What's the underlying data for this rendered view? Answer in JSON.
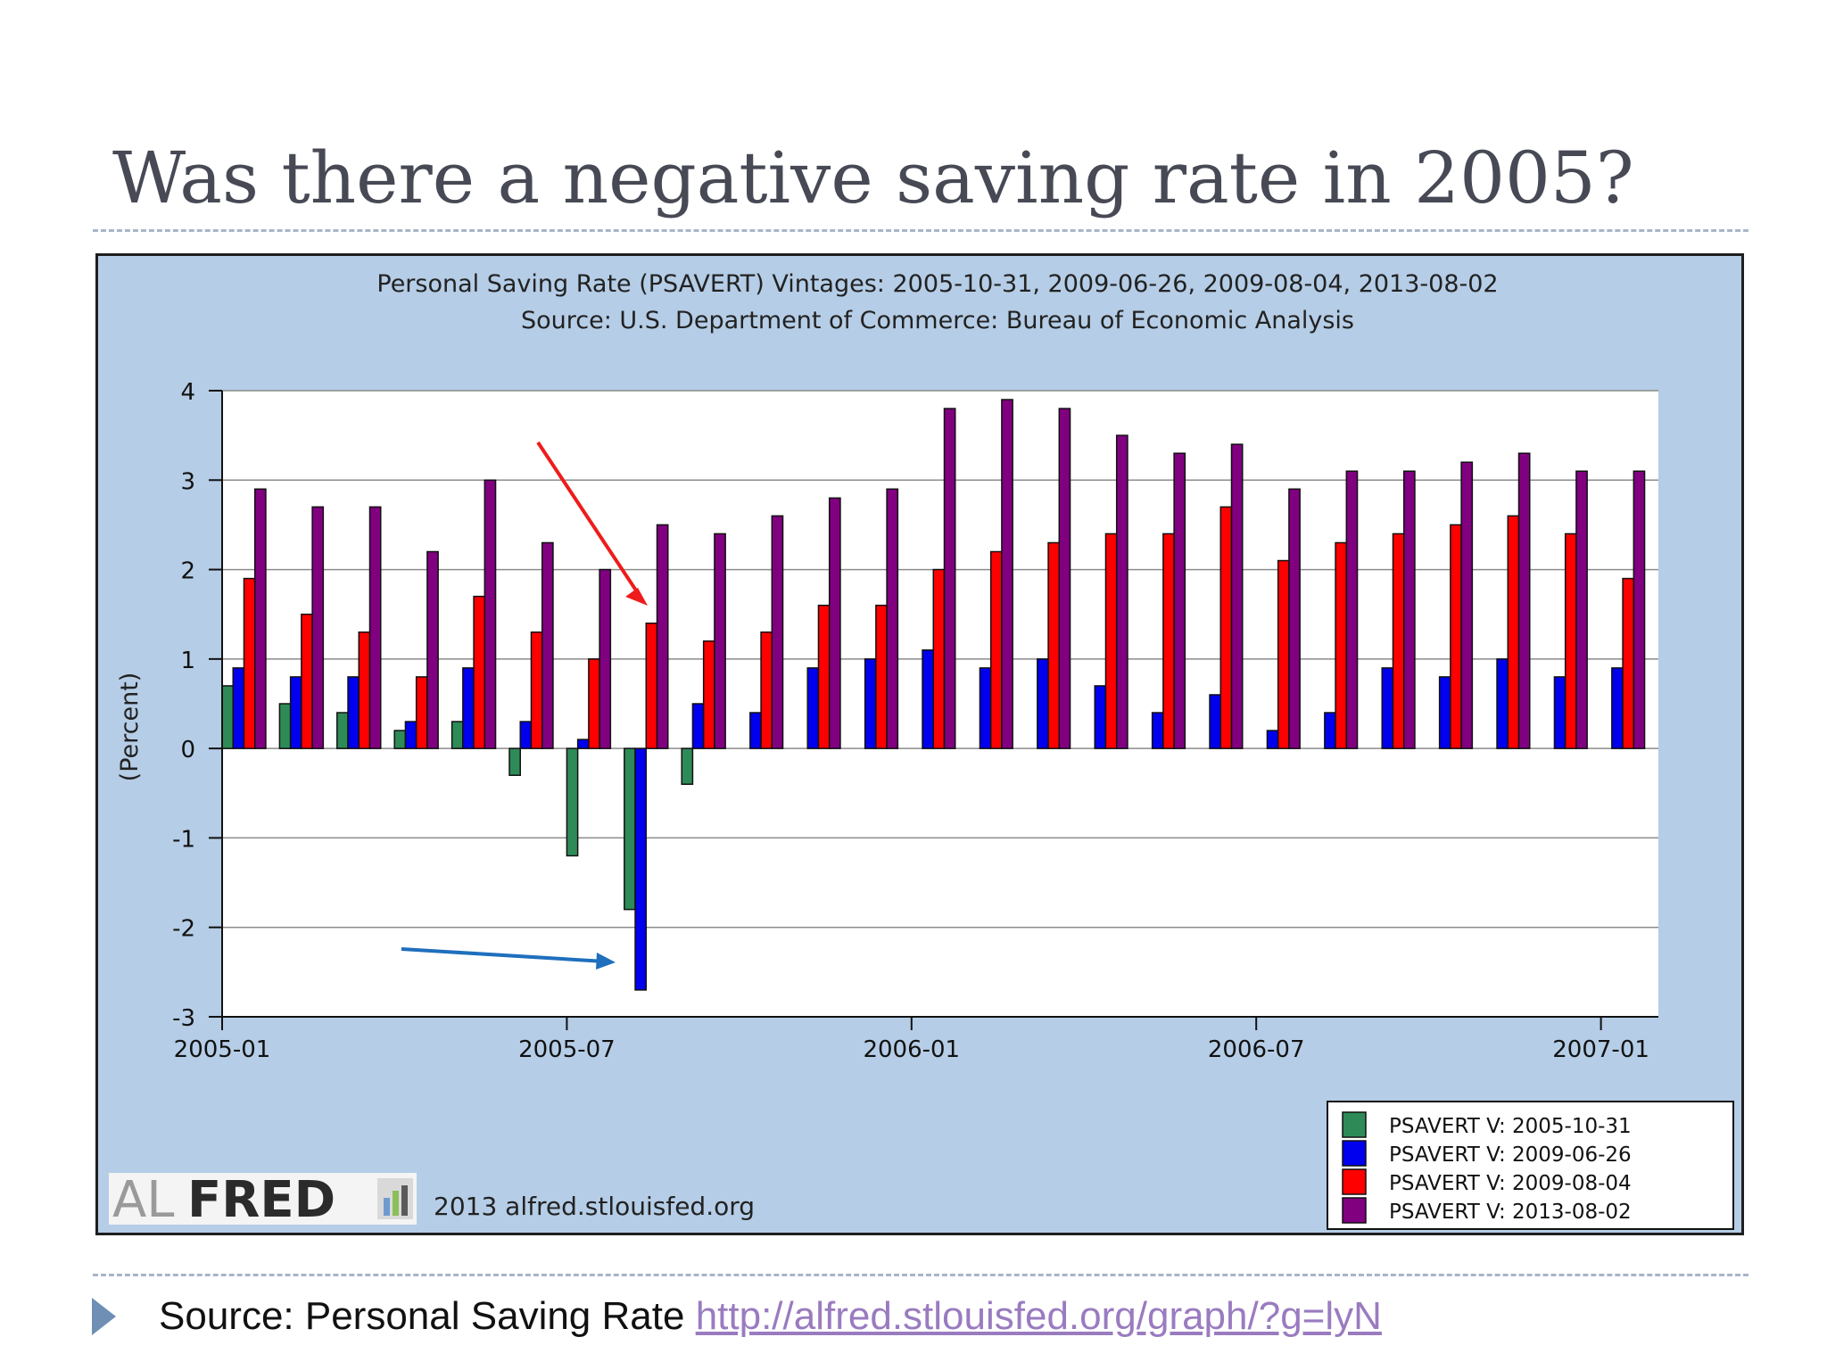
{
  "slide": {
    "title": "Was there a negative saving rate in 2005?",
    "caption_prefix": "Source: Personal Saving Rate",
    "caption_link": "http://alfred.stlouisfed.org/graph/?g=lyN"
  },
  "chart_footer": {
    "logo_text_light": "AL",
    "logo_text_dark": "FRED",
    "credit": "2013 alfred.stlouisfed.org"
  },
  "colors": {
    "background": "#b5cde6",
    "plot": "#ffffff",
    "grid": "#8c8c8c",
    "annotation_red": "#ee1c1c",
    "annotation_blue": "#1f6fbd"
  },
  "chart_data": {
    "type": "bar",
    "title": "Personal Saving Rate (PSAVERT) Vintages: 2005-10-31, 2009-06-26, 2009-08-04, 2013-08-02",
    "subtitle": "Source: U.S. Department of Commerce: Bureau of Economic Analysis",
    "xlabel": "",
    "ylabel": "(Percent)",
    "ylim": [
      -3,
      4
    ],
    "yticks": [
      4,
      3,
      2,
      1,
      0,
      -1,
      -2,
      -3
    ],
    "xlim": [
      "2005-01",
      "2007-02"
    ],
    "xticks": [
      "2005-01",
      "2005-07",
      "2006-01",
      "2006-07",
      "2007-01"
    ],
    "grid": true,
    "legend_position": "bottom-right",
    "categories": [
      "2005-01",
      "2005-02",
      "2005-03",
      "2005-04",
      "2005-05",
      "2005-06",
      "2005-07",
      "2005-08",
      "2005-09",
      "2005-10",
      "2005-11",
      "2005-12",
      "2006-01",
      "2006-02",
      "2006-03",
      "2006-04",
      "2006-05",
      "2006-06",
      "2006-07",
      "2006-08",
      "2006-09",
      "2006-10",
      "2006-11",
      "2006-12",
      "2007-01"
    ],
    "series": [
      {
        "name": "PSAVERT V: 2005-10-31",
        "color": "#2e8b57",
        "values": [
          0.7,
          0.5,
          0.4,
          0.2,
          0.3,
          -0.3,
          -1.2,
          -1.8,
          -0.4,
          null,
          null,
          null,
          null,
          null,
          null,
          null,
          null,
          null,
          null,
          null,
          null,
          null,
          null,
          null,
          null
        ]
      },
      {
        "name": "PSAVERT V: 2009-06-26",
        "color": "#0000ee",
        "values": [
          0.9,
          0.8,
          0.8,
          0.3,
          0.9,
          0.3,
          0.1,
          -2.7,
          0.5,
          0.4,
          0.9,
          1.0,
          1.1,
          0.9,
          1.0,
          0.7,
          0.4,
          0.6,
          0.2,
          0.4,
          0.9,
          0.8,
          1.0,
          0.8,
          0.9
        ]
      },
      {
        "name": "PSAVERT V: 2009-08-04",
        "color": "#ff0000",
        "values": [
          1.9,
          1.5,
          1.3,
          0.8,
          1.7,
          1.3,
          1.0,
          1.4,
          1.2,
          1.3,
          1.6,
          1.6,
          2.0,
          2.2,
          2.3,
          2.4,
          2.4,
          2.7,
          2.1,
          2.3,
          2.4,
          2.5,
          2.6,
          2.4,
          1.9
        ]
      },
      {
        "name": "PSAVERT V: 2013-08-02",
        "color": "#800080",
        "values": [
          2.9,
          2.7,
          2.7,
          2.2,
          3.0,
          2.3,
          2.0,
          2.5,
          2.4,
          2.6,
          2.8,
          2.9,
          3.8,
          3.9,
          3.8,
          3.5,
          3.3,
          3.4,
          2.9,
          3.1,
          3.1,
          3.2,
          3.3,
          3.1,
          3.1
        ]
      }
    ]
  }
}
